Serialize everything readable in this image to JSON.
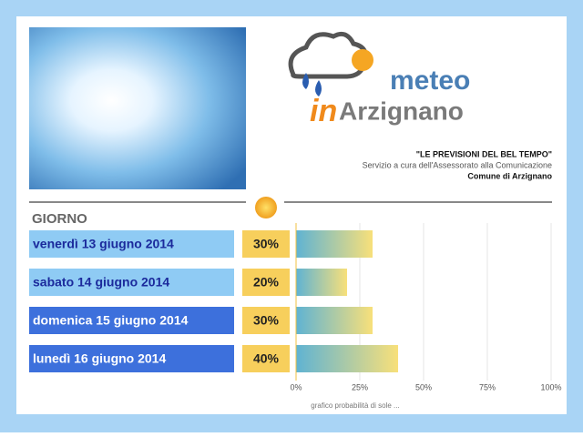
{
  "header": {
    "logo_word": "meteo",
    "logo_in": "in",
    "logo_town": "Arzignano",
    "slogan": "\"LE PREVISIONI DEL BEL TEMPO\"",
    "service": "Servizio a cura dell'Assessorato alla Comunicazione",
    "comune": "Comune di Arzignano"
  },
  "chart_data": {
    "type": "bar",
    "orientation": "horizontal",
    "category_header": "GIORNO",
    "categories": [
      "venerdì 13 giugno 2014",
      "sabato 14 giugno 2014",
      "domenica 15 giugno 2014",
      "lunedì 16 giugno 2014"
    ],
    "values": [
      30,
      20,
      30,
      40
    ],
    "value_labels": [
      "30%",
      "20%",
      "30%",
      "40%"
    ],
    "xlim": [
      0,
      100
    ],
    "xticks": [
      {
        "value": 0,
        "label": "0%"
      },
      {
        "value": 25,
        "label": "25%"
      },
      {
        "value": 50,
        "label": "50%"
      },
      {
        "value": 75,
        "label": "75%"
      },
      {
        "value": 100,
        "label": "100%"
      }
    ],
    "xlabel": "grafico probabilità di sole ...",
    "grid": true
  }
}
